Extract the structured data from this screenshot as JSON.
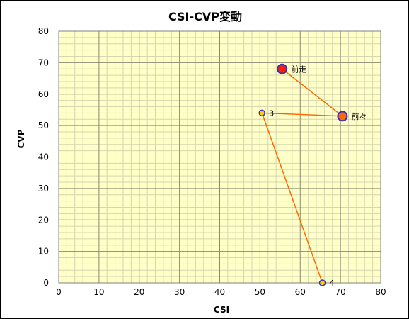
{
  "chart_data": {
    "type": "scatter",
    "title": "CSI-CVP変動",
    "xlabel": "CSI",
    "ylabel": "CVP",
    "xlim": [
      0,
      80
    ],
    "ylim": [
      0,
      80
    ],
    "xticks": [
      "0",
      "10",
      "20",
      "30",
      "40",
      "50",
      "60",
      "70",
      "80"
    ],
    "yticks": [
      "0",
      "10",
      "20",
      "30",
      "40",
      "50",
      "60",
      "70",
      "80"
    ],
    "grid": true,
    "plot_background": "#FFFFC8",
    "line_color": "#FF6A00",
    "points": [
      {
        "label": "前走",
        "x": 55.5,
        "y": 68,
        "marker": "large",
        "fill": "#FF2000",
        "edge": "#3030C0"
      },
      {
        "label": "前々",
        "x": 70.5,
        "y": 53,
        "marker": "large",
        "fill": "#FF6A00",
        "edge": "#3030C0"
      },
      {
        "label": "3",
        "x": 50.5,
        "y": 54,
        "marker": "small",
        "fill": "#FFD000",
        "edge": "#3030C0"
      },
      {
        "label": "4",
        "x": 65.5,
        "y": 0,
        "marker": "small",
        "fill": "#FFD000",
        "edge": "#3030C0"
      }
    ]
  }
}
